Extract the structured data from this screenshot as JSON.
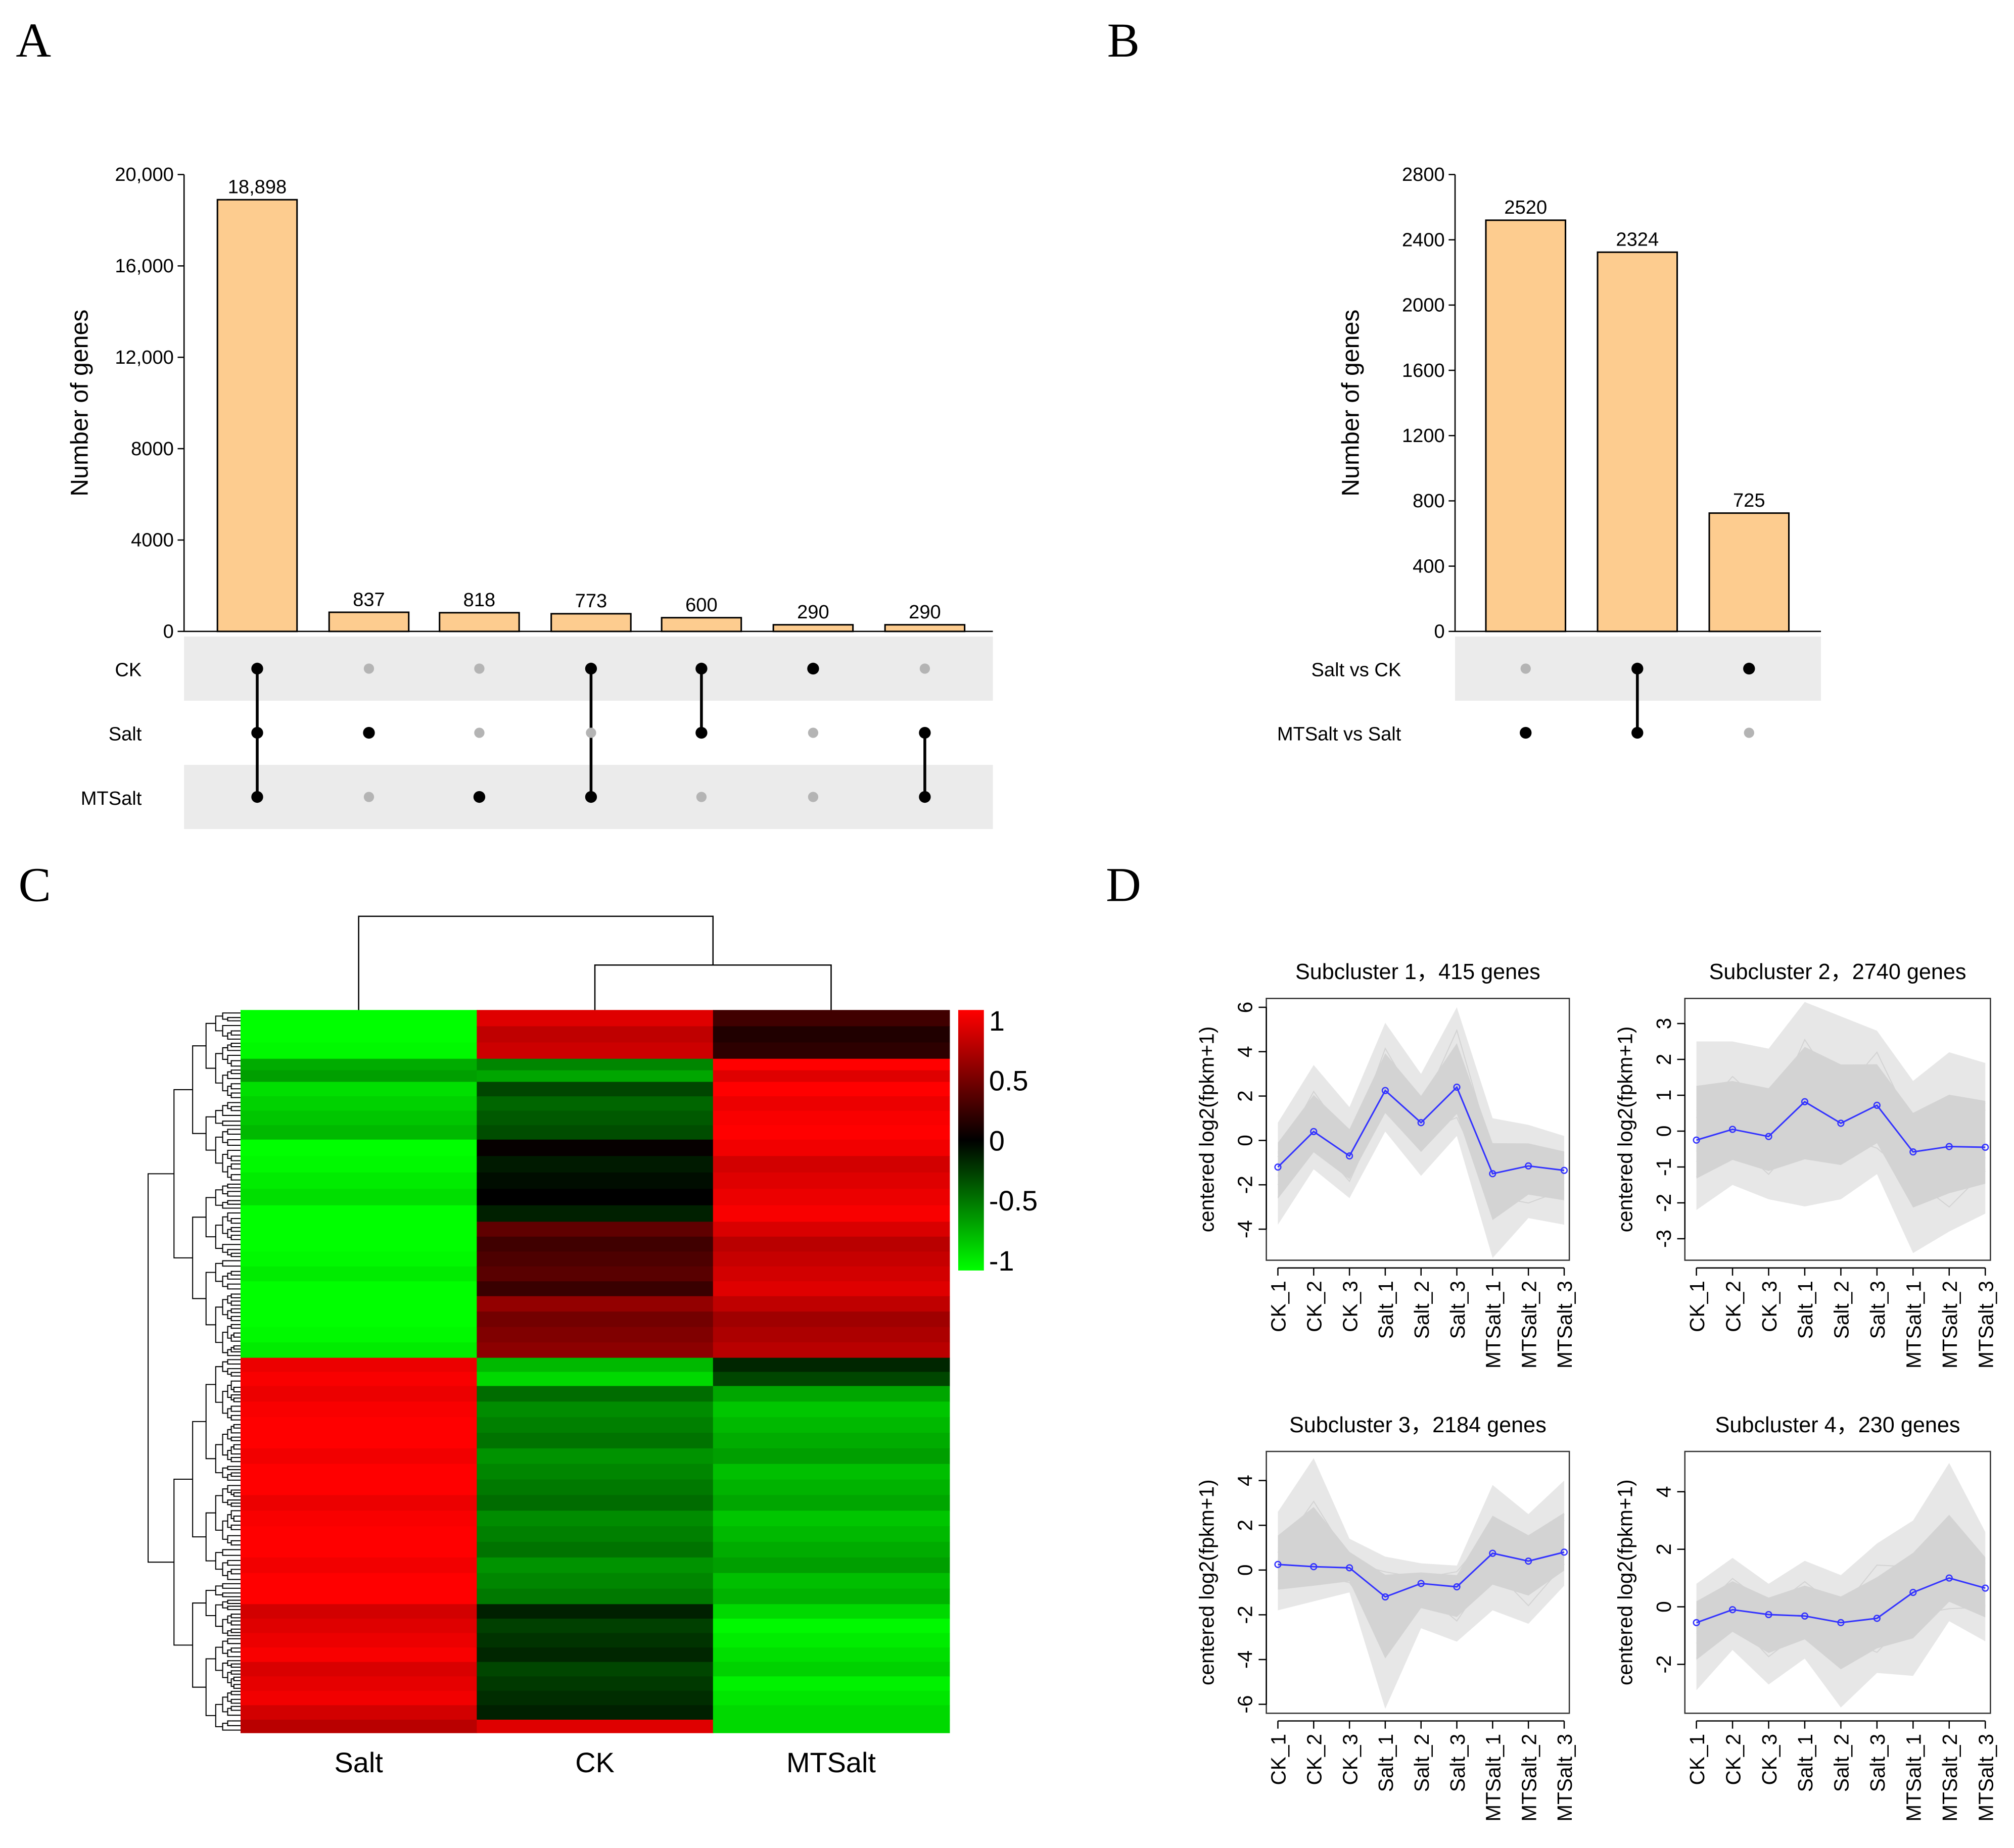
{
  "chart_data": [
    {
      "panel": "A",
      "type": "bar",
      "ylabel": "Number of genes",
      "ylim": [
        0,
        20000
      ],
      "yticks": [
        0,
        4000,
        8000,
        12000,
        16000,
        20000
      ],
      "ytick_labels": [
        "0",
        "4000",
        "8000",
        "12,000",
        "16,000",
        "20,000"
      ],
      "sets": [
        "CK",
        "Salt",
        "MTSalt"
      ],
      "values": [
        18898,
        837,
        818,
        773,
        600,
        290,
        290
      ],
      "value_labels": [
        "18,898",
        "837",
        "818",
        "773",
        "600",
        "290",
        "290"
      ],
      "membership": [
        [
          "CK",
          "Salt",
          "MTSalt"
        ],
        [
          "Salt"
        ],
        [
          "MTSalt"
        ],
        [
          "CK",
          "MTSalt"
        ],
        [
          "CK",
          "Salt"
        ],
        [
          "CK"
        ],
        [
          "Salt",
          "MTSalt"
        ]
      ],
      "bar_color": "#fdcc8f"
    },
    {
      "panel": "B",
      "type": "bar",
      "ylabel": "Number of genes",
      "ylim": [
        0,
        2800
      ],
      "yticks": [
        0,
        400,
        800,
        1200,
        1600,
        2000,
        2400,
        2800
      ],
      "ytick_labels": [
        "0",
        "400",
        "800",
        "1200",
        "1600",
        "2000",
        "2400",
        "2800"
      ],
      "sets": [
        "Salt vs CK",
        "MTSalt vs Salt"
      ],
      "values": [
        2520,
        2324,
        725
      ],
      "value_labels": [
        "2520",
        "2324",
        "725"
      ],
      "membership": [
        [
          "MTSalt vs Salt"
        ],
        [
          "Salt vs CK",
          "MTSalt vs Salt"
        ],
        [
          "Salt vs CK"
        ]
      ],
      "bar_color": "#fdcc8f"
    },
    {
      "panel": "C",
      "type": "heatmap",
      "columns": [
        "Salt",
        "CK",
        "MTSalt"
      ],
      "colorbar": {
        "range": [
          -1,
          1
        ],
        "ticks": [
          1,
          0.5,
          0,
          -0.5,
          -1
        ],
        "tick_labels": [
          "1",
          "0.5",
          "0",
          "-0.5",
          "-1"
        ],
        "low": "#00ff00",
        "mid": "#000000",
        "high": "#ff0000"
      },
      "row_blocks": [
        {
          "rows": 38,
          "values": [
            -1.0,
            0.8,
            0.2
          ]
        },
        {
          "rows": 18,
          "values": [
            -0.6,
            -0.6,
            0.95
          ]
        },
        {
          "rows": 45,
          "values": [
            -0.8,
            -0.35,
            1.0
          ]
        },
        {
          "rows": 64,
          "values": [
            -0.95,
            -0.05,
            0.9
          ]
        },
        {
          "rows": 58,
          "values": [
            -1.0,
            0.3,
            0.8
          ]
        },
        {
          "rows": 48,
          "values": [
            -1.0,
            0.5,
            0.7
          ]
        },
        {
          "rows": 22,
          "values": [
            1.0,
            -0.8,
            -0.2
          ]
        },
        {
          "rows": 170,
          "values": [
            1.0,
            -0.5,
            -0.7
          ]
        },
        {
          "rows": 90,
          "values": [
            0.9,
            -0.2,
            -0.9
          ]
        },
        {
          "rows": 10,
          "values": [
            0.8,
            0.8,
            -0.9
          ]
        }
      ]
    },
    {
      "panel": "D",
      "type": "line",
      "xcategories": [
        "CK_1",
        "CK_2",
        "CK_3",
        "Salt_1",
        "Salt_2",
        "Salt_3",
        "MTSalt_1",
        "MTSalt_2",
        "MTSalt_3"
      ],
      "ylabel": "centered log2(fpkm+1)",
      "line_color": "#3333ff",
      "spread_color": "#d3d3d3",
      "subplots": [
        {
          "title": "Subcluster 1，415 genes",
          "ylim": [
            -5.4,
            6.4
          ],
          "yticks": [
            -4,
            -2,
            0,
            2,
            4,
            6
          ],
          "mean": [
            -1.2,
            0.4,
            -0.7,
            2.25,
            0.8,
            2.4,
            -1.5,
            -1.15,
            -1.35
          ],
          "upper": [
            0.8,
            3.4,
            1.5,
            5.3,
            3.0,
            6.0,
            1.0,
            0.7,
            0.2
          ],
          "lower": [
            -3.8,
            -1.3,
            -2.6,
            0.4,
            -1.6,
            0.2,
            -5.3,
            -3.5,
            -3.8
          ]
        },
        {
          "title": "Subcluster 2，2740 genes",
          "ylim": [
            -3.6,
            3.7
          ],
          "yticks": [
            -3,
            -2,
            -1,
            0,
            1,
            2,
            3
          ],
          "mean": [
            -0.25,
            0.05,
            -0.15,
            0.82,
            0.22,
            0.72,
            -0.58,
            -0.43,
            -0.45
          ],
          "upper": [
            2.5,
            2.5,
            2.3,
            3.6,
            3.2,
            2.8,
            1.4,
            2.2,
            1.9
          ],
          "lower": [
            -2.2,
            -1.5,
            -1.9,
            -2.1,
            -1.9,
            -1.2,
            -3.4,
            -2.8,
            -2.3
          ]
        },
        {
          "title": "Subcluster 3，2184 genes",
          "ylim": [
            -6.4,
            5.3
          ],
          "yticks": [
            -6,
            -4,
            -2,
            0,
            2,
            4
          ],
          "mean": [
            0.25,
            0.15,
            0.1,
            -1.2,
            -0.6,
            -0.75,
            0.75,
            0.4,
            0.8
          ],
          "upper": [
            2.6,
            5.0,
            1.4,
            0.6,
            0.3,
            0.2,
            3.8,
            2.5,
            4.0
          ],
          "lower": [
            -1.8,
            -1.4,
            -1.0,
            -6.2,
            -2.6,
            -3.2,
            -1.8,
            -2.4,
            -0.7
          ]
        },
        {
          "title": "Subcluster 4，230 genes",
          "ylim": [
            -3.7,
            5.4
          ],
          "yticks": [
            -2,
            0,
            2,
            4
          ],
          "mean": [
            -0.55,
            -0.1,
            -0.27,
            -0.32,
            -0.55,
            -0.4,
            0.5,
            1.0,
            0.65
          ],
          "upper": [
            0.8,
            1.7,
            0.8,
            1.6,
            1.1,
            2.2,
            3.0,
            5.0,
            2.6
          ],
          "lower": [
            -2.9,
            -1.5,
            -2.7,
            -1.8,
            -3.5,
            -2.3,
            -2.4,
            -0.5,
            -1.2
          ]
        }
      ]
    }
  ],
  "panel_letters": [
    "A",
    "B",
    "C",
    "D"
  ]
}
